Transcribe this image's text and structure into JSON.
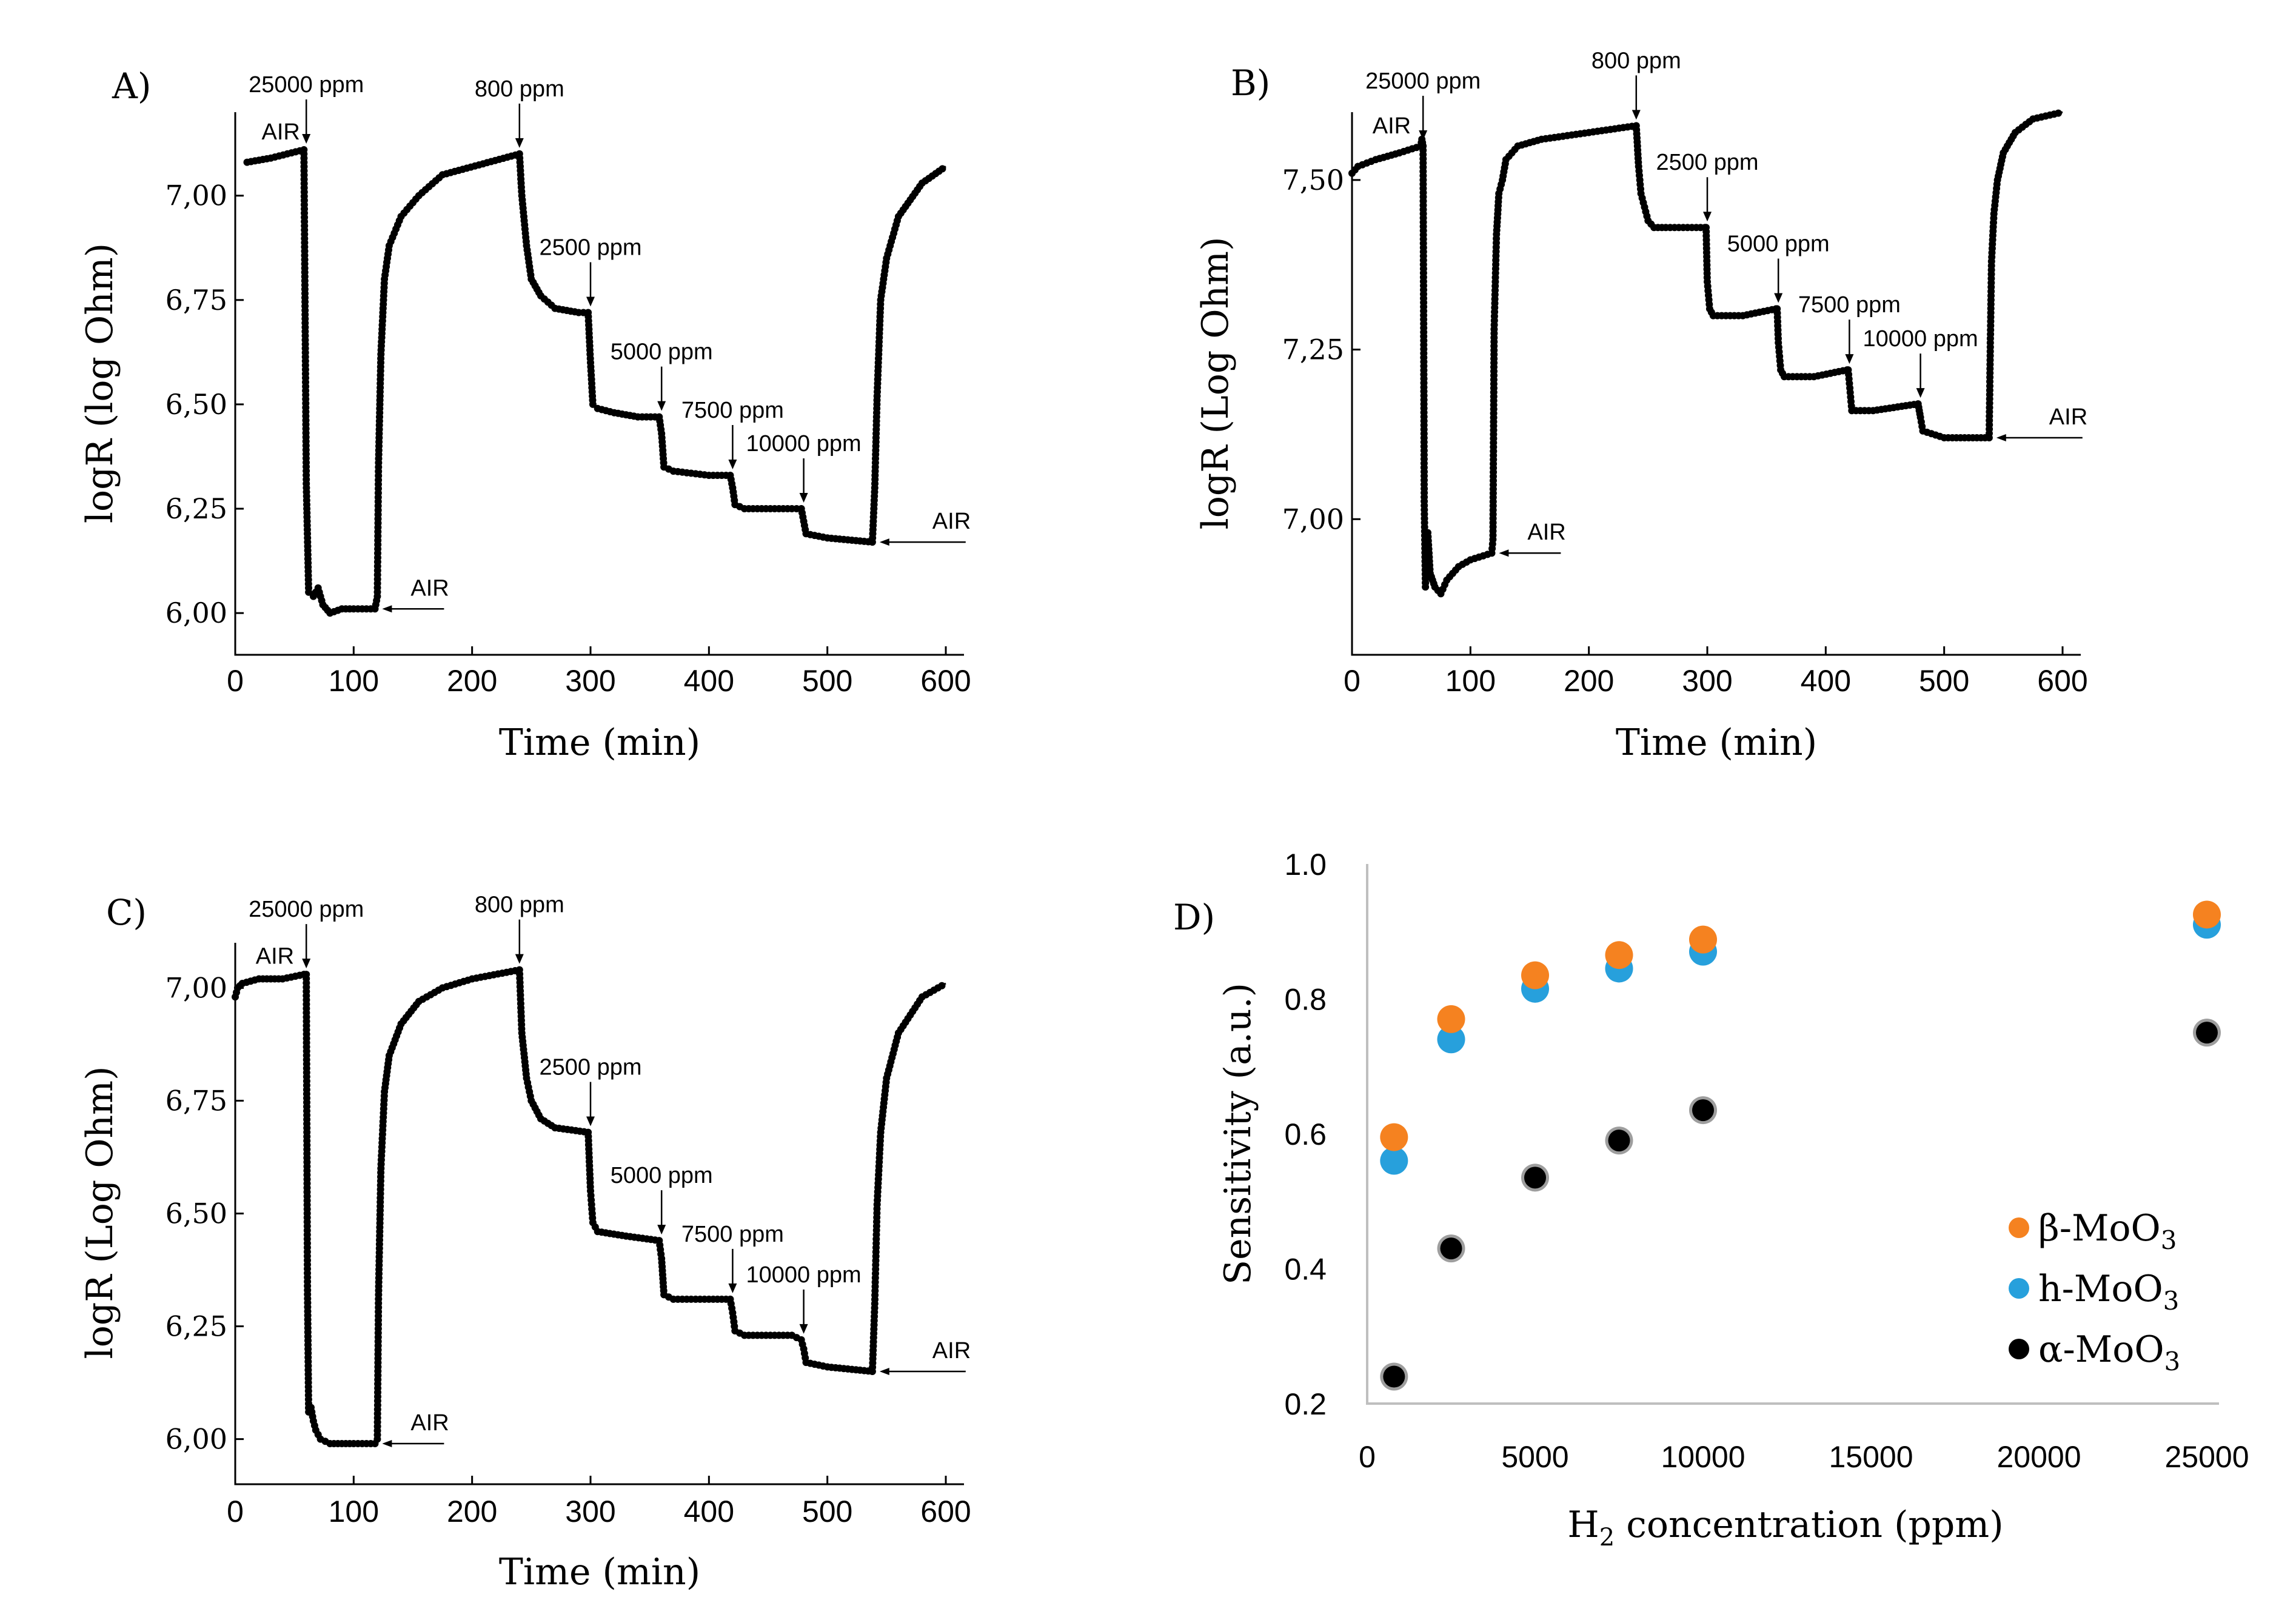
{
  "colors": {
    "beta": "#f58220",
    "h": "#27a0dc",
    "alpha": "#000000",
    "alpha_ring": "#9e9e9e",
    "axis_gray": "#bfbfbf"
  },
  "chart_data": [
    {
      "id": "A",
      "type": "line",
      "panel_label": "A)",
      "xlabel": "Time (min)",
      "ylabel": "logR (log Ohm)",
      "xlim": [
        0,
        600
      ],
      "ylim": [
        5.9,
        7.2
      ],
      "xticks": [
        0,
        100,
        200,
        300,
        400,
        500,
        600
      ],
      "xtick_labels": [
        "0",
        "100",
        "200",
        "300",
        "400",
        "500",
        "600"
      ],
      "yticks": [
        6.0,
        6.25,
        6.5,
        6.75,
        7.0
      ],
      "ytick_labels": [
        "6,00",
        "6,25",
        "6,50",
        "6,75",
        "7,00"
      ],
      "series": [
        {
          "name": "logR",
          "x": [
            10,
            30,
            58,
            60,
            62,
            66,
            70,
            74,
            80,
            90,
            100,
            118,
            120,
            121,
            123,
            126,
            130,
            140,
            155,
            175,
            240,
            242,
            246,
            250,
            258,
            270,
            290,
            298,
            300,
            302,
            306,
            320,
            340,
            358,
            360,
            362,
            370,
            400,
            418,
            420,
            422,
            430,
            470,
            478,
            480,
            482,
            500,
            538,
            540,
            542,
            545,
            550,
            560,
            580,
            600
          ],
          "y": [
            7.08,
            7.09,
            7.11,
            6.31,
            6.05,
            6.04,
            6.06,
            6.02,
            6.0,
            6.01,
            6.01,
            6.01,
            6.04,
            6.36,
            6.62,
            6.8,
            6.88,
            6.95,
            7.0,
            7.05,
            7.1,
            7.0,
            6.88,
            6.8,
            6.76,
            6.73,
            6.72,
            6.72,
            6.6,
            6.5,
            6.49,
            6.48,
            6.47,
            6.47,
            6.43,
            6.35,
            6.34,
            6.33,
            6.33,
            6.3,
            6.26,
            6.25,
            6.25,
            6.25,
            6.22,
            6.19,
            6.18,
            6.17,
            6.3,
            6.52,
            6.75,
            6.85,
            6.95,
            7.03,
            7.07
          ]
        }
      ],
      "annotations": [
        {
          "text": "AIR",
          "x": 10,
          "y": 7.12
        },
        {
          "text": "25000 ppm",
          "x": 60,
          "y": 7.11
        },
        {
          "text": "800 ppm",
          "x": 240,
          "y": 7.1
        },
        {
          "text": "2500 ppm",
          "x": 300,
          "y": 6.72
        },
        {
          "text": "5000 ppm",
          "x": 360,
          "y": 6.47
        },
        {
          "text": "7500 ppm",
          "x": 420,
          "y": 6.33
        },
        {
          "text": "10000 ppm",
          "x": 480,
          "y": 6.25
        },
        {
          "text": "AIR",
          "x": 120,
          "y": 6.01
        },
        {
          "text": "AIR",
          "x": 540,
          "y": 6.17
        }
      ]
    },
    {
      "id": "B",
      "type": "line",
      "panel_label": "B)",
      "xlabel": "Time (min)",
      "ylabel": "logR (Log Ohm)",
      "xlim": [
        0,
        600
      ],
      "ylim": [
        6.8,
        7.6
      ],
      "xticks": [
        0,
        100,
        200,
        300,
        400,
        500,
        600
      ],
      "xtick_labels": [
        "0",
        "100",
        "200",
        "300",
        "400",
        "500",
        "600"
      ],
      "yticks": [
        7.0,
        7.25,
        7.5
      ],
      "ytick_labels": [
        "7,00",
        "7,25",
        "7,50"
      ],
      "series": [
        {
          "name": "logR",
          "x": [
            0,
            5,
            20,
            40,
            58,
            59,
            60,
            61,
            62,
            63,
            64,
            65,
            66,
            68,
            70,
            75,
            80,
            90,
            100,
            118,
            119,
            120,
            122,
            124,
            127,
            130,
            140,
            160,
            200,
            240,
            242,
            244,
            247,
            250,
            255,
            265,
            298,
            299,
            300,
            302,
            305,
            330,
            358,
            359,
            360,
            362,
            365,
            390,
            418,
            419,
            420,
            422,
            440,
            478,
            479,
            480,
            482,
            500,
            538,
            539,
            540,
            542,
            545,
            550,
            560,
            575,
            600
          ],
          "y": [
            7.51,
            7.52,
            7.53,
            7.54,
            7.55,
            7.56,
            7.55,
            7.02,
            6.9,
            6.96,
            6.98,
            6.95,
            6.92,
            6.91,
            6.9,
            6.89,
            6.91,
            6.93,
            6.94,
            6.95,
            6.97,
            7.28,
            7.42,
            7.48,
            7.5,
            7.53,
            7.55,
            7.56,
            7.57,
            7.58,
            7.52,
            7.48,
            7.46,
            7.44,
            7.43,
            7.43,
            7.43,
            7.43,
            7.35,
            7.31,
            7.3,
            7.3,
            7.31,
            7.31,
            7.26,
            7.22,
            7.21,
            7.21,
            7.22,
            7.22,
            7.2,
            7.16,
            7.16,
            7.17,
            7.16,
            7.15,
            7.13,
            7.12,
            7.12,
            7.26,
            7.38,
            7.45,
            7.5,
            7.54,
            7.57,
            7.59,
            7.6
          ]
        }
      ],
      "annotations": [
        {
          "text": "AIR",
          "x": 5,
          "y": 7.56
        },
        {
          "text": "25000 ppm",
          "x": 60,
          "y": 7.55
        },
        {
          "text": "800 ppm",
          "x": 240,
          "y": 7.58
        },
        {
          "text": "2500 ppm",
          "x": 300,
          "y": 7.43
        },
        {
          "text": "5000 ppm",
          "x": 360,
          "y": 7.31
        },
        {
          "text": "7500 ppm",
          "x": 420,
          "y": 7.22
        },
        {
          "text": "10000 ppm",
          "x": 480,
          "y": 7.17
        },
        {
          "text": "AIR",
          "x": 120,
          "y": 6.95
        },
        {
          "text": "AIR",
          "x": 540,
          "y": 7.12
        }
      ]
    },
    {
      "id": "C",
      "type": "line",
      "panel_label": "C)",
      "xlabel": "Time (min)",
      "ylabel": "logR (Log Ohm)",
      "xlim": [
        0,
        600
      ],
      "ylim": [
        5.9,
        7.1
      ],
      "xticks": [
        0,
        100,
        200,
        300,
        400,
        500,
        600
      ],
      "xtick_labels": [
        "0",
        "100",
        "200",
        "300",
        "400",
        "500",
        "600"
      ],
      "yticks": [
        6.0,
        6.25,
        6.5,
        6.75,
        7.0
      ],
      "ytick_labels": [
        "6,00",
        "6,25",
        "6,50",
        "6,75",
        "7,00"
      ],
      "series": [
        {
          "name": "logR",
          "x": [
            0,
            2,
            6,
            20,
            40,
            58,
            60,
            61,
            62,
            64,
            66,
            68,
            72,
            80,
            90,
            100,
            118,
            120,
            121,
            123,
            126,
            130,
            140,
            155,
            175,
            200,
            240,
            242,
            246,
            250,
            258,
            270,
            298,
            300,
            302,
            306,
            330,
            358,
            360,
            362,
            370,
            400,
            418,
            420,
            422,
            430,
            470,
            478,
            480,
            482,
            500,
            538,
            540,
            542,
            545,
            550,
            560,
            580,
            600
          ],
          "y": [
            6.98,
            7.0,
            7.01,
            7.02,
            7.02,
            7.03,
            7.03,
            6.33,
            6.06,
            6.07,
            6.04,
            6.02,
            6.0,
            5.99,
            5.99,
            5.99,
            5.99,
            6.0,
            6.32,
            6.6,
            6.77,
            6.85,
            6.92,
            6.97,
            7.0,
            7.02,
            7.04,
            6.9,
            6.8,
            6.75,
            6.71,
            6.69,
            6.68,
            6.55,
            6.48,
            6.46,
            6.45,
            6.44,
            6.4,
            6.32,
            6.31,
            6.31,
            6.31,
            6.28,
            6.24,
            6.23,
            6.23,
            6.22,
            6.2,
            6.17,
            6.16,
            6.15,
            6.3,
            6.52,
            6.68,
            6.8,
            6.9,
            6.98,
            7.01
          ]
        }
      ],
      "annotations": [
        {
          "text": "AIR",
          "x": 5,
          "y": 7.04
        },
        {
          "text": "25000 ppm",
          "x": 60,
          "y": 7.03
        },
        {
          "text": "800 ppm",
          "x": 240,
          "y": 7.04
        },
        {
          "text": "2500 ppm",
          "x": 300,
          "y": 6.68
        },
        {
          "text": "5000 ppm",
          "x": 360,
          "y": 6.44
        },
        {
          "text": "7500 ppm",
          "x": 420,
          "y": 6.31
        },
        {
          "text": "10000 ppm",
          "x": 480,
          "y": 6.22
        },
        {
          "text": "AIR",
          "x": 120,
          "y": 5.99
        },
        {
          "text": "AIR",
          "x": 540,
          "y": 6.15
        }
      ]
    },
    {
      "id": "D",
      "type": "scatter",
      "panel_label": "D)",
      "xlabel_main": "H",
      "xlabel_sub": "2",
      "xlabel_rest": " concentration (ppm)",
      "ylabel": "Sensitivity (a.u.)",
      "xlim": [
        0,
        25000
      ],
      "ylim": [
        0.2,
        1.0
      ],
      "xticks": [
        0,
        5000,
        10000,
        15000,
        20000,
        25000
      ],
      "xtick_labels": [
        "0",
        "5000",
        "10000",
        "15000",
        "20000",
        "25000"
      ],
      "yticks": [
        0.2,
        0.4,
        0.6,
        0.8,
        1.0
      ],
      "ytick_labels": [
        "0.2",
        "0.4",
        "0.6",
        "0.8",
        "1.0"
      ],
      "legend_position": "bottom-right",
      "categories": [
        800,
        2500,
        5000,
        7500,
        10000,
        25000
      ],
      "series": [
        {
          "name": "β-MoO",
          "sub": "3",
          "key": "beta",
          "values": [
            0.595,
            0.77,
            0.835,
            0.865,
            0.888,
            0.925
          ]
        },
        {
          "name": "h-MoO",
          "sub": "3",
          "key": "h",
          "values": [
            0.56,
            0.74,
            0.815,
            0.845,
            0.87,
            0.91
          ]
        },
        {
          "name": "α-MoO",
          "sub": "3",
          "key": "alpha",
          "values": [
            0.24,
            0.43,
            0.535,
            0.59,
            0.635,
            0.75
          ]
        }
      ]
    }
  ]
}
